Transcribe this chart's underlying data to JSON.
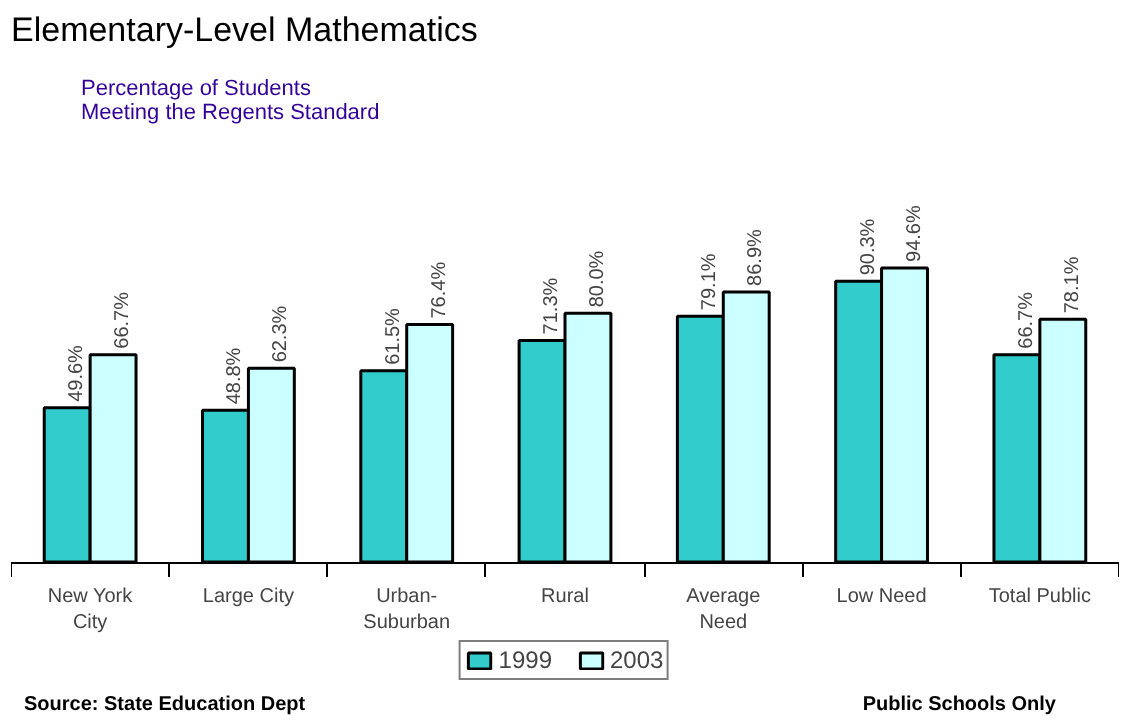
{
  "chart_data": {
    "type": "bar",
    "title": "Elementary-Level Mathematics",
    "subtitle": "Percentage of Students\nMeeting the Regents Standard",
    "categories": [
      "New York\nCity",
      "Large City",
      "Urban-\nSuburban",
      "Rural",
      "Average\nNeed",
      "Low Need",
      "Total Public"
    ],
    "series": [
      {
        "name": "1999",
        "color": "#33cccc",
        "values": [
          49.6,
          48.8,
          61.5,
          71.3,
          79.1,
          90.3,
          66.7
        ],
        "value_labels": [
          "49.6%",
          "48.8%",
          "61.5%",
          "71.3%",
          "79.1%",
          "90.3%",
          "66.7%"
        ]
      },
      {
        "name": "2003",
        "color": "#ccffff",
        "values": [
          66.7,
          62.3,
          76.4,
          80.0,
          86.9,
          94.6,
          78.1
        ],
        "value_labels": [
          "66.7%",
          "62.3%",
          "76.4%",
          "80.0%",
          "86.9%",
          "94.6%",
          "78.1%"
        ]
      }
    ],
    "legend": "bottom",
    "grid": false,
    "annotations": [
      "Source: State Education Dept",
      "Public Schools Only"
    ]
  }
}
